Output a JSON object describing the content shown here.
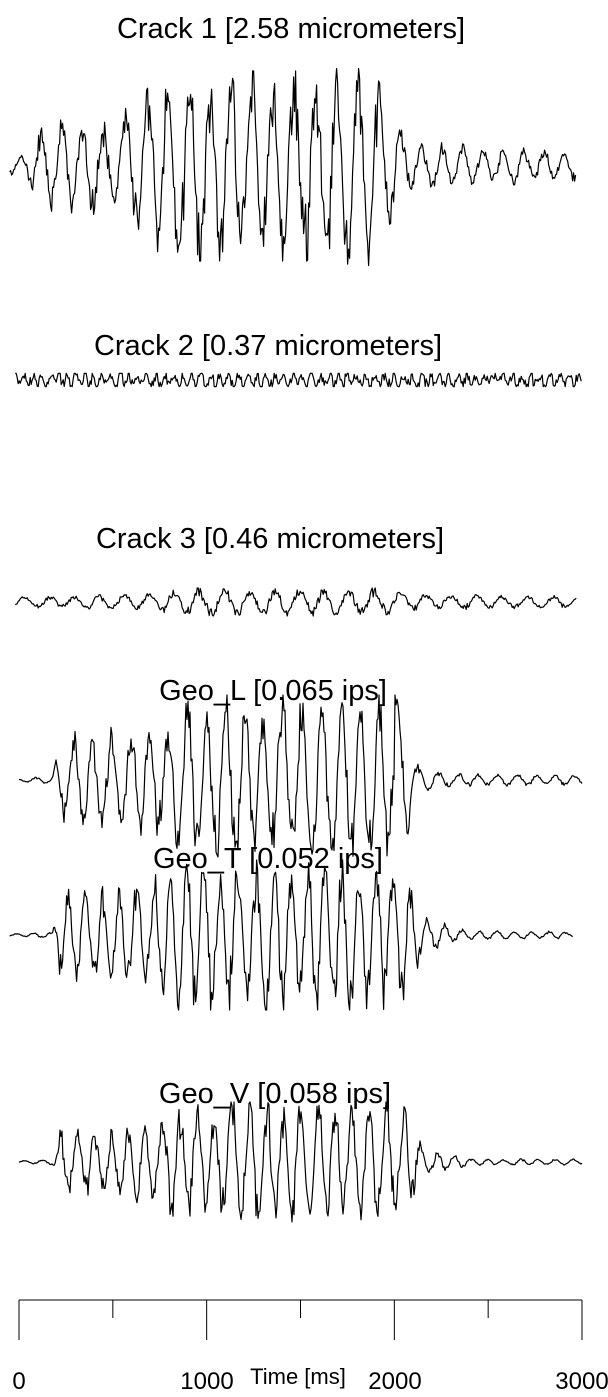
{
  "chart_data": {
    "type": "line",
    "description_kind": "stacked vibration time histories",
    "xlabel": "Time [ms]",
    "xlim": [
      0,
      3000
    ],
    "x_ticks_major": [
      0,
      1000,
      2000,
      3000
    ],
    "x_tick_labels": [
      "0",
      "1000",
      "2000",
      "3000"
    ],
    "x_ticks_minor": [
      500,
      1500,
      2500
    ],
    "grid": false,
    "line_color": "#000000",
    "series": [
      {
        "name": "Crack 1 [2.58 micrometers]",
        "t_start": -50,
        "t_end": 2970,
        "peak": 2.58,
        "envelope": [
          [
            0,
            0.1
          ],
          [
            150,
            0.45
          ],
          [
            500,
            0.5
          ],
          [
            800,
            0.95
          ],
          [
            1500,
            0.95
          ],
          [
            1900,
            1.0
          ],
          [
            2100,
            0.25
          ],
          [
            2970,
            0.15
          ]
        ]
      },
      {
        "name": "Crack 2 [0.37 micrometers]",
        "t_start": -20,
        "t_end": 3000,
        "peak": 0.37,
        "envelope": [
          [
            0,
            0.6
          ],
          [
            3000,
            0.6
          ]
        ]
      },
      {
        "name": "Crack 3 [0.46 micrometers]",
        "t_start": -20,
        "t_end": 2970,
        "peak": 0.46,
        "envelope": [
          [
            0,
            0.4
          ],
          [
            700,
            0.6
          ],
          [
            900,
            1.0
          ],
          [
            1900,
            1.0
          ],
          [
            2200,
            0.55
          ],
          [
            2970,
            0.45
          ]
        ]
      },
      {
        "name": "Geo_L [0.065 ips]",
        "t_start": 0,
        "t_end": 3000,
        "peak": 0.065,
        "envelope": [
          [
            0,
            0.02
          ],
          [
            180,
            0.05
          ],
          [
            220,
            0.55
          ],
          [
            800,
            0.7
          ],
          [
            850,
            1.0
          ],
          [
            2050,
            1.0
          ],
          [
            2100,
            0.2
          ],
          [
            2300,
            0.08
          ],
          [
            3000,
            0.06
          ]
        ]
      },
      {
        "name": "Geo_T [0.052 ips]",
        "t_start": -50,
        "t_end": 2950,
        "peak": 0.052,
        "envelope": [
          [
            0,
            0.02
          ],
          [
            180,
            0.05
          ],
          [
            220,
            0.6
          ],
          [
            700,
            0.7
          ],
          [
            780,
            1.0
          ],
          [
            2050,
            1.0
          ],
          [
            2150,
            0.25
          ],
          [
            2400,
            0.06
          ],
          [
            2950,
            0.05
          ]
        ]
      },
      {
        "name": "Geo_V [0.058 ips]",
        "t_start": 0,
        "t_end": 3000,
        "peak": 0.058,
        "envelope": [
          [
            0,
            0.02
          ],
          [
            180,
            0.05
          ],
          [
            220,
            0.55
          ],
          [
            700,
            0.7
          ],
          [
            800,
            1.0
          ],
          [
            2050,
            1.0
          ],
          [
            2150,
            0.25
          ],
          [
            2400,
            0.06
          ],
          [
            3000,
            0.05
          ]
        ]
      }
    ]
  }
}
